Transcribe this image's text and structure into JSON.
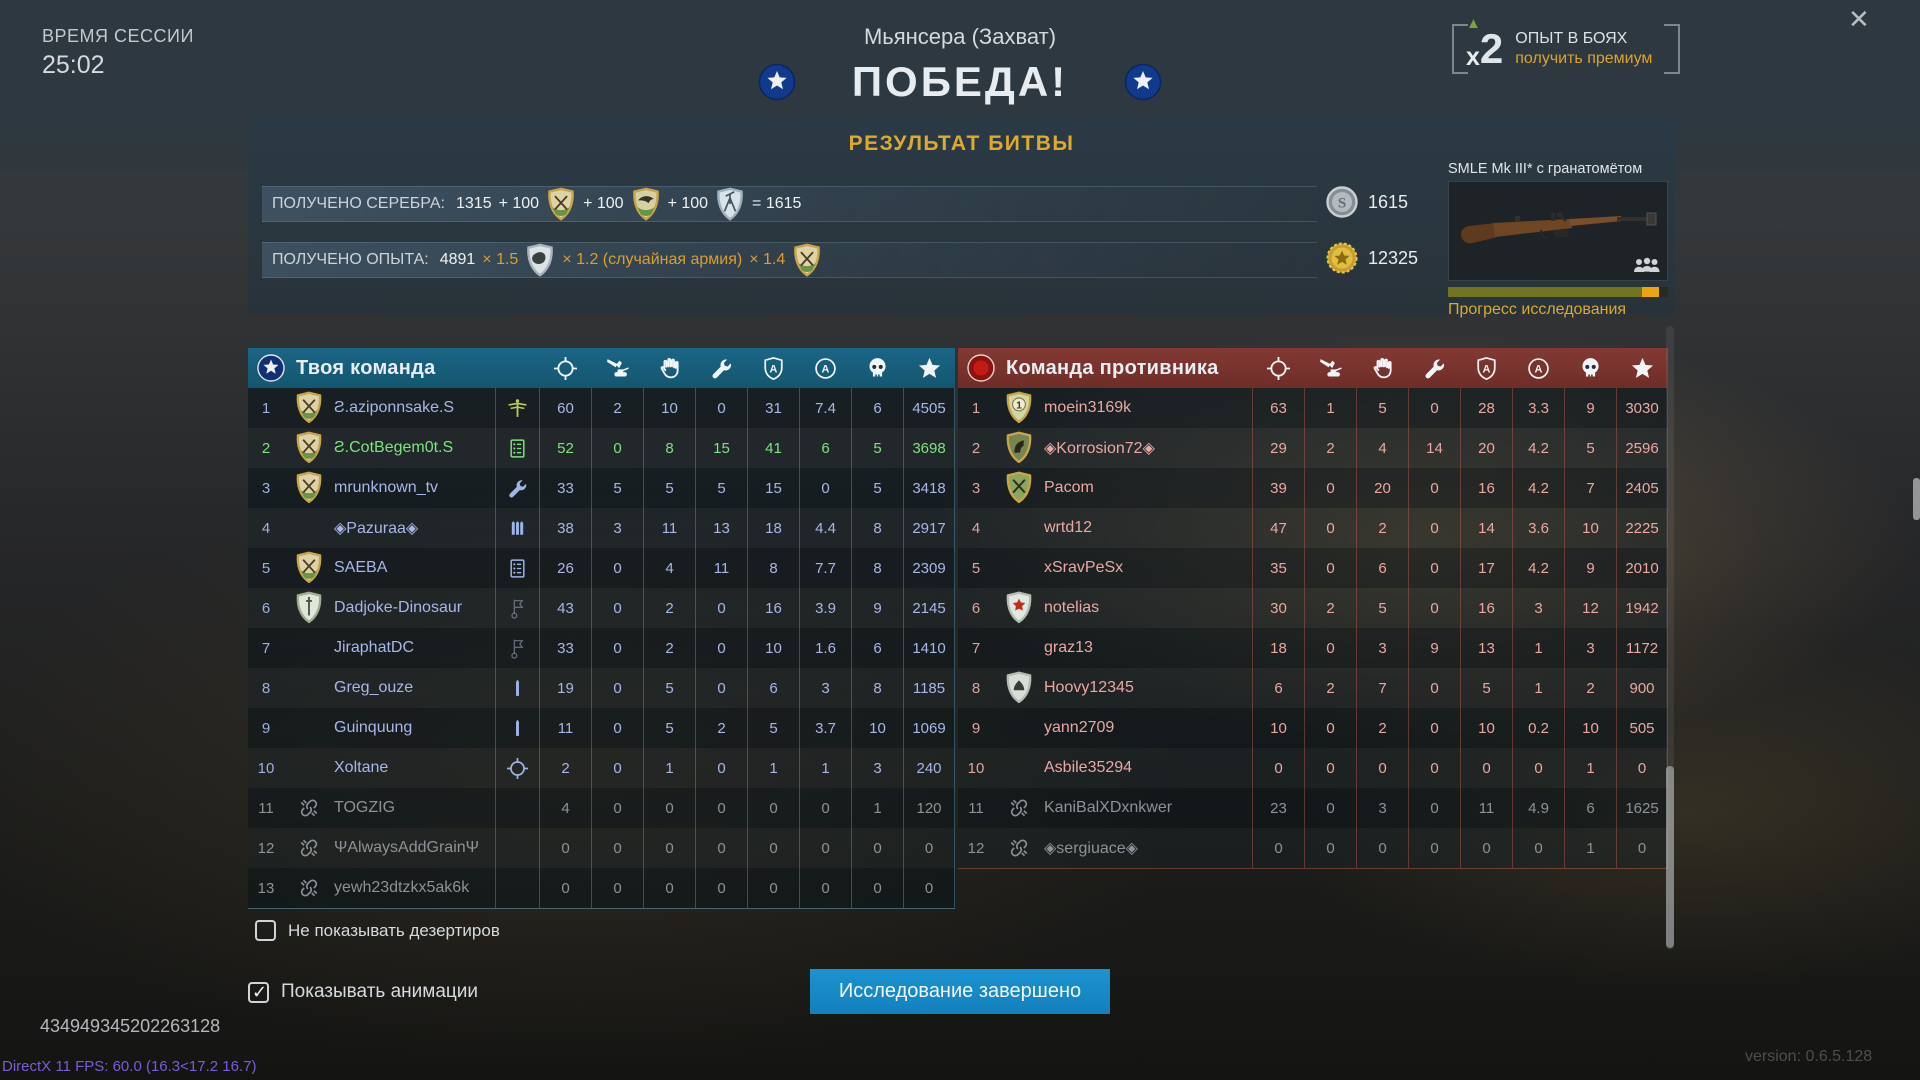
{
  "icons": {
    "close": "✕"
  },
  "session": {
    "label": "ВРЕМЯ СЕССИИ",
    "time": "25:02"
  },
  "header": {
    "map": "Мьянсера (Захват)",
    "result": "ПОБЕДА!"
  },
  "premium": {
    "multiplier_x": "x",
    "multiplier_n": "2",
    "line1": "ОПЫТ В БОЯХ",
    "line2": "получить премиум"
  },
  "battle_results": {
    "title": "РЕЗУЛЬТАТ БИТВЫ",
    "silver_line": {
      "label": "ПОЛУЧЕНО СЕРЕБРА:",
      "segments": [
        {
          "text": "1315"
        },
        {
          "text": "+ 100",
          "icon": "medal-crossed-rifles"
        },
        {
          "text": "+ 100",
          "icon": "medal-eagle"
        },
        {
          "text": "+ 100",
          "icon": "medal-aa-gun"
        },
        {
          "text": "= 1615"
        }
      ],
      "total": "1615"
    },
    "xp_line": {
      "label": "ПОЛУЧЕНО ОПЫТА:",
      "segments": [
        {
          "text": "4891"
        },
        {
          "text": "× 1.5",
          "style": "mult",
          "icon": "medal-fist"
        },
        {
          "text": "× 1.2 (случайная армия)",
          "style": "mult"
        },
        {
          "text": "× 1.4",
          "style": "mult",
          "icon": "medal-crossed-rifles"
        }
      ],
      "total": "12325"
    }
  },
  "research": {
    "weapon": "SMLE Mk III* с гранатомётом",
    "progress_label": "Прогресс исследования",
    "researched_pct": 88,
    "session_pct": 8
  },
  "columns": [
    "crosshair",
    "ground-attack",
    "hand",
    "wrench",
    "shield-a",
    "circle-a",
    "skull",
    "star"
  ],
  "teams": {
    "ally": {
      "title": "Твоя команда",
      "rows": [
        {
          "rank": "1",
          "emblem": "clan-crossed-rifles",
          "name": "Ƨ.aziponnsake.S",
          "badge": "medic-award",
          "values": [
            "60",
            "2",
            "10",
            "0",
            "31",
            "7.4",
            "6",
            "4505"
          ],
          "state": "normal"
        },
        {
          "rank": "2",
          "emblem": "clan-crossed-rifles",
          "name": "Ƨ.CotBegem0t.S",
          "badge": "scoreboard",
          "values": [
            "52",
            "0",
            "8",
            "15",
            "41",
            "6",
            "5",
            "3698"
          ],
          "state": "self"
        },
        {
          "rank": "3",
          "emblem": "clan-crossed-rifles",
          "name": "mrunknown_tv",
          "badge": "wrench",
          "values": [
            "33",
            "5",
            "5",
            "5",
            "15",
            "0",
            "5",
            "3418"
          ],
          "state": "normal"
        },
        {
          "rank": "4",
          "emblem": "",
          "name": "◈Pazuraa◈",
          "badge": "bullets3",
          "values": [
            "38",
            "3",
            "11",
            "13",
            "18",
            "4.4",
            "8",
            "2917"
          ],
          "state": "normal"
        },
        {
          "rank": "5",
          "emblem": "clan-crossed-rifles",
          "name": "SAEBA",
          "badge": "scoreboard",
          "values": [
            "26",
            "0",
            "4",
            "11",
            "8",
            "7.7",
            "8",
            "2309"
          ],
          "state": "normal"
        },
        {
          "rank": "6",
          "emblem": "shield-sword",
          "name": "Dadjoke-Dinosaur",
          "badge": "flag",
          "values": [
            "43",
            "0",
            "2",
            "0",
            "16",
            "3.9",
            "9",
            "2145"
          ],
          "state": "normal"
        },
        {
          "rank": "7",
          "emblem": "",
          "name": "JiraphatDC",
          "badge": "flag",
          "values": [
            "33",
            "0",
            "2",
            "0",
            "10",
            "1.6",
            "6",
            "1410"
          ],
          "state": "normal"
        },
        {
          "rank": "8",
          "emblem": "",
          "name": "Greg_ouze",
          "badge": "bullet1",
          "values": [
            "19",
            "0",
            "5",
            "0",
            "6",
            "3",
            "8",
            "1185"
          ],
          "state": "normal"
        },
        {
          "rank": "9",
          "emblem": "",
          "name": "Guinquung",
          "badge": "bullet1",
          "values": [
            "11",
            "0",
            "5",
            "2",
            "5",
            "3.7",
            "10",
            "1069"
          ],
          "state": "normal"
        },
        {
          "rank": "10",
          "emblem": "",
          "name": "Xoltane",
          "badge": "crosshair",
          "values": [
            "2",
            "0",
            "1",
            "0",
            "1",
            "1",
            "3",
            "240"
          ],
          "state": "normal"
        },
        {
          "rank": "11",
          "emblem": "",
          "name": "TOGZIG",
          "badge": "",
          "values": [
            "4",
            "0",
            "0",
            "0",
            "0",
            "0",
            "1",
            "120"
          ],
          "state": "deserter"
        },
        {
          "rank": "12",
          "emblem": "",
          "name": "ΨAlwaysAddGrainΨ",
          "badge": "",
          "values": [
            "0",
            "0",
            "0",
            "0",
            "0",
            "0",
            "0",
            "0"
          ],
          "state": "deserter"
        },
        {
          "rank": "13",
          "emblem": "",
          "name": "yewh23dtzkx5ak6k",
          "badge": "",
          "values": [
            "0",
            "0",
            "0",
            "0",
            "0",
            "0",
            "0",
            "0"
          ],
          "state": "deserter"
        }
      ]
    },
    "enemy": {
      "title": "Команда противника",
      "rows": [
        {
          "rank": "1",
          "emblem": "emblem-one",
          "name": "moein3169k",
          "values": [
            "63",
            "1",
            "5",
            "0",
            "28",
            "3.3",
            "9",
            "3030"
          ],
          "state": "normal"
        },
        {
          "rank": "2",
          "emblem": "emblem-knight",
          "name": "◈Korrosion72◈",
          "values": [
            "29",
            "2",
            "4",
            "14",
            "20",
            "4.2",
            "5",
            "2596"
          ],
          "state": "normal"
        },
        {
          "rank": "3",
          "emblem": "emblem-swords",
          "name": "Pacom",
          "values": [
            "39",
            "0",
            "20",
            "0",
            "16",
            "4.2",
            "7",
            "2405"
          ],
          "state": "normal"
        },
        {
          "rank": "4",
          "emblem": "",
          "name": "wrtd12",
          "values": [
            "47",
            "0",
            "2",
            "0",
            "14",
            "3.6",
            "10",
            "2225"
          ],
          "state": "normal"
        },
        {
          "rank": "5",
          "emblem": "",
          "name": "xSravPeSx",
          "values": [
            "35",
            "0",
            "6",
            "0",
            "17",
            "4.2",
            "9",
            "2010"
          ],
          "state": "normal"
        },
        {
          "rank": "6",
          "emblem": "emblem-maple",
          "name": "notelias",
          "values": [
            "30",
            "2",
            "5",
            "0",
            "16",
            "3",
            "12",
            "1942"
          ],
          "state": "normal"
        },
        {
          "rank": "7",
          "emblem": "",
          "name": "graz13",
          "values": [
            "18",
            "0",
            "3",
            "9",
            "13",
            "1",
            "3",
            "1172"
          ],
          "state": "normal"
        },
        {
          "rank": "8",
          "emblem": "emblem-pale",
          "name": "Hoovy12345",
          "values": [
            "6",
            "2",
            "7",
            "0",
            "5",
            "1",
            "2",
            "900"
          ],
          "state": "normal"
        },
        {
          "rank": "9",
          "emblem": "",
          "name": "yann2709",
          "values": [
            "10",
            "0",
            "2",
            "0",
            "10",
            "0.2",
            "10",
            "505"
          ],
          "state": "normal"
        },
        {
          "rank": "10",
          "emblem": "",
          "name": "Asbile35294",
          "values": [
            "0",
            "0",
            "0",
            "0",
            "0",
            "0",
            "1",
            "0"
          ],
          "state": "normal"
        },
        {
          "rank": "11",
          "emblem": "",
          "name": "KaniBalXDxnkwer",
          "values": [
            "23",
            "0",
            "3",
            "0",
            "11",
            "4.9",
            "6",
            "1625"
          ],
          "state": "deserter"
        },
        {
          "rank": "12",
          "emblem": "",
          "name": "◈sergiuace◈",
          "values": [
            "0",
            "0",
            "0",
            "0",
            "0",
            "0",
            "1",
            "0"
          ],
          "state": "deserter"
        }
      ]
    }
  },
  "checkboxes": [
    {
      "label": "Не показывать дезертиров",
      "checked": false
    },
    {
      "label": "Показывать анимации",
      "checked": true
    }
  ],
  "button": {
    "label": "Исследование завершено"
  },
  "footer": {
    "id": "434949345202263128",
    "fps": "DirectX 11 FPS: 60.0 (16.3<17.2 16.7)",
    "version": "version: 0.6.5.128"
  }
}
